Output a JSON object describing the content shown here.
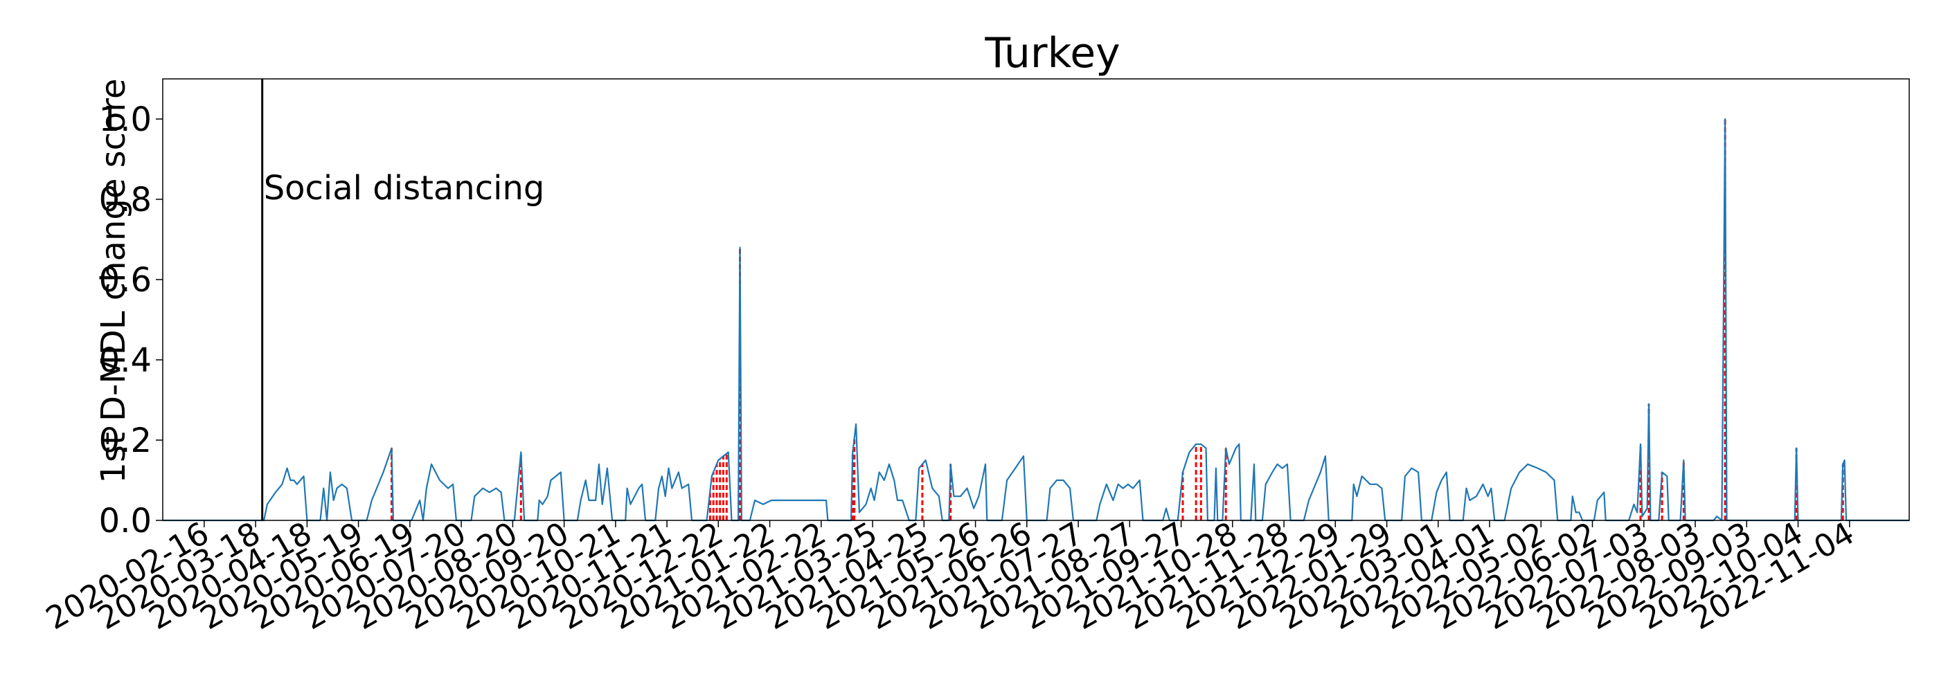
{
  "chart_data": {
    "type": "line",
    "title": "Turkey",
    "xlabel": "",
    "ylabel": "1st D-MDL change score",
    "x_type": "date",
    "xlim": [
      "2020-01-22",
      "2022-12-10"
    ],
    "ylim": [
      0,
      1.1
    ],
    "grid": false,
    "x_ticks": [
      "2020-02-16",
      "2020-03-18",
      "2020-04-18",
      "2020-05-19",
      "2020-06-19",
      "2020-07-20",
      "2020-08-20",
      "2020-09-20",
      "2020-10-21",
      "2020-11-21",
      "2020-12-22",
      "2021-01-22",
      "2021-02-22",
      "2021-03-25",
      "2021-04-25",
      "2021-05-26",
      "2021-06-26",
      "2021-07-27",
      "2021-08-27",
      "2021-09-27",
      "2021-10-28",
      "2021-11-28",
      "2021-12-29",
      "2022-01-29",
      "2022-03-01",
      "2022-04-01",
      "2022-05-02",
      "2022-06-02",
      "2022-07-03",
      "2022-08-03",
      "2022-09-03",
      "2022-10-04",
      "2022-11-04"
    ],
    "y_ticks": [
      "0.0",
      "0.2",
      "0.4",
      "0.6",
      "0.8",
      "1.0"
    ],
    "series": [
      {
        "color": "#1f77b4",
        "points": [
          [
            "2020-01-22",
            0
          ],
          [
            "2020-03-23",
            0
          ],
          [
            "2020-03-25",
            0.04
          ],
          [
            "2020-03-30",
            0.07
          ],
          [
            "2020-04-03",
            0.09
          ],
          [
            "2020-04-06",
            0.13
          ],
          [
            "2020-04-08",
            0.1
          ],
          [
            "2020-04-10",
            0.1
          ],
          [
            "2020-04-12",
            0.09
          ],
          [
            "2020-04-14",
            0.1
          ],
          [
            "2020-04-16",
            0.11
          ],
          [
            "2020-04-18",
            0
          ],
          [
            "2020-04-26",
            0
          ],
          [
            "2020-04-28",
            0.08
          ],
          [
            "2020-04-30",
            0
          ],
          [
            "2020-05-02",
            0.12
          ],
          [
            "2020-05-04",
            0.05
          ],
          [
            "2020-05-06",
            0.08
          ],
          [
            "2020-05-09",
            0.09
          ],
          [
            "2020-05-12",
            0.08
          ],
          [
            "2020-05-15",
            0
          ],
          [
            "2020-05-24",
            0
          ],
          [
            "2020-05-27",
            0.05
          ],
          [
            "2020-06-03",
            0.12
          ],
          [
            "2020-06-08",
            0.18
          ],
          [
            "2020-06-09",
            0
          ],
          [
            "2020-06-20",
            0
          ],
          [
            "2020-06-25",
            0.05
          ],
          [
            "2020-06-27",
            0
          ],
          [
            "2020-06-29",
            0.08
          ],
          [
            "2020-07-02",
            0.14
          ],
          [
            "2020-07-07",
            0.1
          ],
          [
            "2020-07-12",
            0.08
          ],
          [
            "2020-07-15",
            0.09
          ],
          [
            "2020-07-17",
            0
          ],
          [
            "2020-07-26",
            0
          ],
          [
            "2020-07-28",
            0.06
          ],
          [
            "2020-08-02",
            0.08
          ],
          [
            "2020-08-06",
            0.07
          ],
          [
            "2020-08-10",
            0.08
          ],
          [
            "2020-08-13",
            0.07
          ],
          [
            "2020-08-15",
            0
          ],
          [
            "2020-08-21",
            0
          ],
          [
            "2020-08-25",
            0.17
          ],
          [
            "2020-08-27",
            0
          ],
          [
            "2020-09-04",
            0
          ],
          [
            "2020-09-05",
            0.05
          ],
          [
            "2020-09-07",
            0.04
          ],
          [
            "2020-09-10",
            0.06
          ],
          [
            "2020-09-12",
            0.1
          ],
          [
            "2020-09-18",
            0.12
          ],
          [
            "2020-09-20",
            0
          ],
          [
            "2020-09-28",
            0
          ],
          [
            "2020-09-30",
            0.05
          ],
          [
            "2020-10-03",
            0.1
          ],
          [
            "2020-10-05",
            0.05
          ],
          [
            "2020-10-09",
            0.05
          ],
          [
            "2020-10-11",
            0.14
          ],
          [
            "2020-10-13",
            0.04
          ],
          [
            "2020-10-16",
            0.13
          ],
          [
            "2020-10-19",
            0
          ],
          [
            "2020-10-27",
            0
          ],
          [
            "2020-10-28",
            0.08
          ],
          [
            "2020-10-30",
            0.04
          ],
          [
            "2020-11-04",
            0.08
          ],
          [
            "2020-11-06",
            0.09
          ],
          [
            "2020-11-08",
            0
          ],
          [
            "2020-11-14",
            0
          ],
          [
            "2020-11-16",
            0.08
          ],
          [
            "2020-11-18",
            0.11
          ],
          [
            "2020-11-20",
            0.06
          ],
          [
            "2020-11-22",
            0.13
          ],
          [
            "2020-11-24",
            0.08
          ],
          [
            "2020-11-28",
            0.12
          ],
          [
            "2020-11-30",
            0.08
          ],
          [
            "2020-12-04",
            0.09
          ],
          [
            "2020-12-06",
            0
          ],
          [
            "2020-12-15",
            0
          ],
          [
            "2020-12-18",
            0.11
          ],
          [
            "2020-12-22",
            0.15
          ],
          [
            "2020-12-28",
            0.17
          ],
          [
            "2020-12-30",
            0
          ],
          [
            "2021-01-03",
            0
          ],
          [
            "2021-01-04",
            0.68
          ],
          [
            "2021-01-05",
            0
          ],
          [
            "2021-01-10",
            0
          ],
          [
            "2021-01-13",
            0.05
          ],
          [
            "2021-01-18",
            0.04
          ],
          [
            "2021-01-23",
            0.05
          ],
          [
            "2021-02-25",
            0.05
          ],
          [
            "2021-02-26",
            0
          ],
          [
            "2021-03-12",
            0
          ],
          [
            "2021-03-13",
            0.17
          ],
          [
            "2021-03-15",
            0.24
          ],
          [
            "2021-03-17",
            0.02
          ],
          [
            "2021-03-21",
            0.04
          ],
          [
            "2021-03-24",
            0.08
          ],
          [
            "2021-03-26",
            0.05
          ],
          [
            "2021-03-29",
            0.12
          ],
          [
            "2021-04-01",
            0.1
          ],
          [
            "2021-04-04",
            0.14
          ],
          [
            "2021-04-07",
            0.1
          ],
          [
            "2021-04-09",
            0.05
          ],
          [
            "2021-04-12",
            0.05
          ],
          [
            "2021-04-16",
            0
          ],
          [
            "2021-04-20",
            0
          ],
          [
            "2021-04-22",
            0.13
          ],
          [
            "2021-04-26",
            0.15
          ],
          [
            "2021-04-30",
            0.08
          ],
          [
            "2021-05-04",
            0.06
          ],
          [
            "2021-05-06",
            0
          ],
          [
            "2021-05-10",
            0
          ],
          [
            "2021-05-11",
            0.14
          ],
          [
            "2021-05-13",
            0.06
          ],
          [
            "2021-05-17",
            0.06
          ],
          [
            "2021-05-21",
            0.08
          ],
          [
            "2021-05-25",
            0.03
          ],
          [
            "2021-05-28",
            0.06
          ],
          [
            "2021-06-01",
            0.14
          ],
          [
            "2021-06-02",
            0
          ],
          [
            "2021-06-11",
            0
          ],
          [
            "2021-06-14",
            0.1
          ],
          [
            "2021-06-19",
            0.13
          ],
          [
            "2021-06-24",
            0.16
          ],
          [
            "2021-06-26",
            0
          ],
          [
            "2021-07-08",
            0
          ],
          [
            "2021-07-10",
            0.08
          ],
          [
            "2021-07-14",
            0.1
          ],
          [
            "2021-07-18",
            0.1
          ],
          [
            "2021-07-22",
            0.08
          ],
          [
            "2021-07-24",
            0
          ],
          [
            "2021-08-07",
            0
          ],
          [
            "2021-08-09",
            0.04
          ],
          [
            "2021-08-13",
            0.09
          ],
          [
            "2021-08-17",
            0.05
          ],
          [
            "2021-08-20",
            0.09
          ],
          [
            "2021-08-23",
            0.08
          ],
          [
            "2021-08-26",
            0.09
          ],
          [
            "2021-08-29",
            0.08
          ],
          [
            "2021-09-02",
            0.1
          ],
          [
            "2021-09-04",
            0
          ],
          [
            "2021-09-16",
            0
          ],
          [
            "2021-09-18",
            0.03
          ],
          [
            "2021-09-20",
            0
          ],
          [
            "2021-09-25",
            0
          ],
          [
            "2021-09-28",
            0.12
          ],
          [
            "2021-10-02",
            0.17
          ],
          [
            "2021-10-06",
            0.19
          ],
          [
            "2021-10-09",
            0.19
          ],
          [
            "2021-10-12",
            0.18
          ],
          [
            "2021-10-13",
            0
          ],
          [
            "2021-10-17",
            0
          ],
          [
            "2021-10-18",
            0.13
          ],
          [
            "2021-10-19",
            0
          ],
          [
            "2021-10-22",
            0
          ],
          [
            "2021-10-24",
            0.18
          ],
          [
            "2021-10-26",
            0.14
          ],
          [
            "2021-10-30",
            0.18
          ],
          [
            "2021-11-01",
            0.19
          ],
          [
            "2021-11-02",
            0
          ],
          [
            "2021-11-08",
            0
          ],
          [
            "2021-11-10",
            0.14
          ],
          [
            "2021-11-11",
            0
          ],
          [
            "2021-11-15",
            0
          ],
          [
            "2021-11-17",
            0.09
          ],
          [
            "2021-11-21",
            0.12
          ],
          [
            "2021-11-24",
            0.14
          ],
          [
            "2021-11-27",
            0.13
          ],
          [
            "2021-11-30",
            0.14
          ],
          [
            "2021-12-02",
            0
          ],
          [
            "2021-12-10",
            0
          ],
          [
            "2021-12-13",
            0.05
          ],
          [
            "2021-12-16",
            0.08
          ],
          [
            "2021-12-20",
            0.12
          ],
          [
            "2021-12-23",
            0.16
          ],
          [
            "2021-12-25",
            0
          ],
          [
            "2022-01-08",
            0
          ],
          [
            "2022-01-09",
            0.09
          ],
          [
            "2022-01-11",
            0.06
          ],
          [
            "2022-01-14",
            0.11
          ],
          [
            "2022-01-19",
            0.09
          ],
          [
            "2022-01-23",
            0.09
          ],
          [
            "2022-01-26",
            0.08
          ],
          [
            "2022-01-28",
            0
          ],
          [
            "2022-02-07",
            0
          ],
          [
            "2022-02-09",
            0.11
          ],
          [
            "2022-02-13",
            0.13
          ],
          [
            "2022-02-17",
            0.12
          ],
          [
            "2022-02-19",
            0
          ],
          [
            "2022-02-25",
            0
          ],
          [
            "2022-02-28",
            0.07
          ],
          [
            "2022-03-03",
            0.1
          ],
          [
            "2022-03-06",
            0.12
          ],
          [
            "2022-03-08",
            0
          ],
          [
            "2022-03-16",
            0
          ],
          [
            "2022-03-18",
            0.08
          ],
          [
            "2022-03-20",
            0.05
          ],
          [
            "2022-03-24",
            0.06
          ],
          [
            "2022-03-28",
            0.09
          ],
          [
            "2022-03-31",
            0.06
          ],
          [
            "2022-04-02",
            0.08
          ],
          [
            "2022-04-04",
            0
          ],
          [
            "2022-04-10",
            0
          ],
          [
            "2022-04-14",
            0.08
          ],
          [
            "2022-04-19",
            0.12
          ],
          [
            "2022-04-24",
            0.14
          ],
          [
            "2022-04-30",
            0.13
          ],
          [
            "2022-05-05",
            0.12
          ],
          [
            "2022-05-10",
            0.1
          ],
          [
            "2022-05-12",
            0
          ],
          [
            "2022-05-20",
            0
          ],
          [
            "2022-05-21",
            0.06
          ],
          [
            "2022-05-23",
            0.02
          ],
          [
            "2022-05-25",
            0.02
          ],
          [
            "2022-05-27",
            0
          ],
          [
            "2022-06-03",
            0
          ],
          [
            "2022-06-05",
            0.05
          ],
          [
            "2022-06-09",
            0.07
          ],
          [
            "2022-06-10",
            0
          ],
          [
            "2022-06-24",
            0
          ],
          [
            "2022-06-27",
            0.04
          ],
          [
            "2022-06-29",
            0.02
          ],
          [
            "2022-07-01",
            0.19
          ],
          [
            "2022-07-02",
            0.01
          ],
          [
            "2022-07-05",
            0.03
          ],
          [
            "2022-07-06",
            0.29
          ],
          [
            "2022-07-07",
            0
          ],
          [
            "2022-07-12",
            0
          ],
          [
            "2022-07-14",
            0.12
          ],
          [
            "2022-07-17",
            0.11
          ],
          [
            "2022-07-18",
            0
          ],
          [
            "2022-07-25",
            0
          ],
          [
            "2022-07-27",
            0.15
          ],
          [
            "2022-07-28",
            0
          ],
          [
            "2022-08-14",
            0
          ],
          [
            "2022-08-16",
            0.01
          ],
          [
            "2022-08-19",
            0
          ],
          [
            "2022-08-21",
            1.0
          ],
          [
            "2022-08-22",
            0
          ],
          [
            "2022-10-02",
            0
          ],
          [
            "2022-10-03",
            0.18
          ],
          [
            "2022-10-04",
            0
          ],
          [
            "2022-10-30",
            0
          ],
          [
            "2022-10-31",
            0.14
          ],
          [
            "2022-11-01",
            0.15
          ],
          [
            "2022-11-02",
            0
          ],
          [
            "2022-12-10",
            0
          ]
        ]
      }
    ],
    "change_points": [
      "2020-06-08",
      "2020-08-25",
      "2020-12-17",
      "2020-12-19",
      "2020-12-21",
      "2020-12-23",
      "2020-12-25",
      "2020-12-27",
      "2021-01-04",
      "2021-03-13",
      "2021-03-14",
      "2021-04-24",
      "2021-05-11",
      "2021-09-28",
      "2021-10-06",
      "2021-10-09",
      "2021-10-24",
      "2022-07-01",
      "2022-07-06",
      "2022-07-14",
      "2022-07-27",
      "2022-08-21",
      "2022-10-03",
      "2022-10-31"
    ],
    "events": [
      {
        "date": "2020-03-22",
        "label": "Social distancing"
      }
    ]
  }
}
